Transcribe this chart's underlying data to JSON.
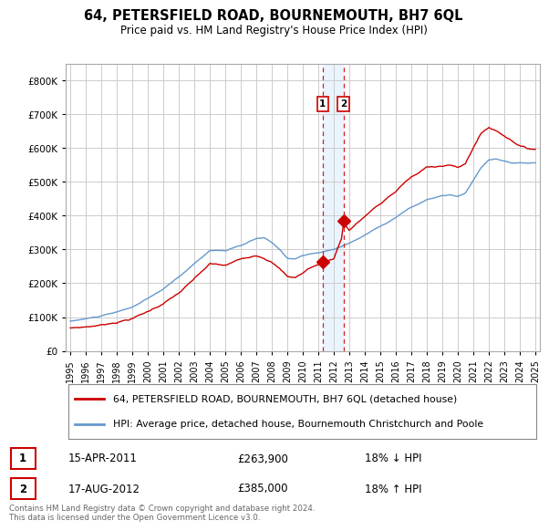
{
  "title": "64, PETERSFIELD ROAD, BOURNEMOUTH, BH7 6QL",
  "subtitle": "Price paid vs. HM Land Registry's House Price Index (HPI)",
  "legend_line1": "64, PETERSFIELD ROAD, BOURNEMOUTH, BH7 6QL (detached house)",
  "legend_line2": "HPI: Average price, detached house, Bournemouth Christchurch and Poole",
  "transaction1_label": "1",
  "transaction1_date": "15-APR-2011",
  "transaction1_price": "£263,900",
  "transaction1_hpi": "18% ↓ HPI",
  "transaction2_label": "2",
  "transaction2_date": "17-AUG-2012",
  "transaction2_price": "£385,000",
  "transaction2_hpi": "18% ↑ HPI",
  "footer": "Contains HM Land Registry data © Crown copyright and database right 2024.\nThis data is licensed under the Open Government Licence v3.0.",
  "hpi_color": "#6699cc",
  "price_color": "#cc0000",
  "vline_color": "#cc2222",
  "shade_color": "#ddeeff",
  "dot_color": "#cc0000",
  "background_color": "#ffffff",
  "grid_color": "#cccccc",
  "ylim": [
    0,
    850000
  ],
  "yticks": [
    0,
    100000,
    200000,
    300000,
    400000,
    500000,
    600000,
    700000,
    800000
  ],
  "transaction1_x": 2011.29,
  "transaction1_y": 263900,
  "transaction2_x": 2012.63,
  "transaction2_y": 385000,
  "vline1_x": 2011.29,
  "vline2_x": 2012.63,
  "xtick_years": [
    1995,
    1996,
    1997,
    1998,
    1999,
    2000,
    2001,
    2002,
    2003,
    2004,
    2005,
    2006,
    2007,
    2008,
    2009,
    2010,
    2011,
    2012,
    2013,
    2014,
    2015,
    2016,
    2017,
    2018,
    2019,
    2020,
    2021,
    2022,
    2023,
    2024,
    2025
  ],
  "xlim_left": 1994.7,
  "xlim_right": 2025.3
}
